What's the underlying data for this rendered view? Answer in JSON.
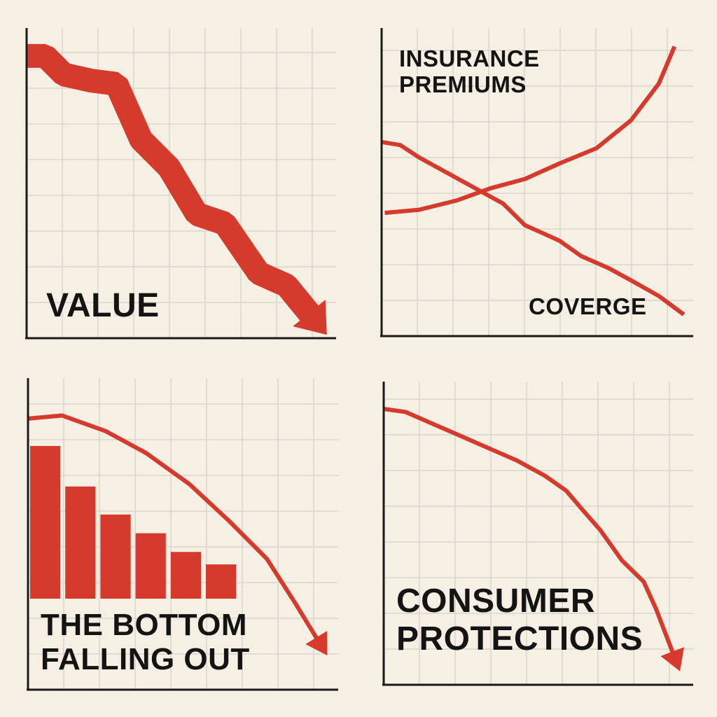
{
  "chart_data": [
    {
      "type": "ribbon",
      "title": "VALUE",
      "xlim": [
        0,
        100
      ],
      "ylim": [
        0,
        100
      ],
      "grid": true,
      "series": [
        {
          "color": "#d63a2c",
          "arrow": true,
          "x": [
            0,
            6,
            12,
            21,
            29,
            37,
            46,
            55,
            64,
            75,
            84,
            93
          ],
          "values": [
            91,
            91,
            85,
            83,
            82,
            64,
            55,
            40,
            37,
            21,
            17,
            6
          ]
        }
      ]
    },
    {
      "type": "line",
      "xlim": [
        0,
        100
      ],
      "ylim": [
        0,
        100
      ],
      "grid": true,
      "series": [
        {
          "name": "INSURANCE PREMIUMS",
          "color": "#d63a2c",
          "x": [
            1,
            12,
            24,
            35,
            46,
            57,
            69,
            80,
            89,
            94
          ],
          "values": [
            40,
            41,
            44,
            48,
            51,
            56,
            61,
            70,
            82,
            94
          ]
        },
        {
          "name": "COVERGE",
          "color": "#d63a2c",
          "x": [
            0,
            6,
            12,
            21,
            30,
            39,
            46,
            57,
            64,
            73,
            82,
            89,
            97
          ],
          "values": [
            63,
            62,
            58,
            53,
            48,
            43,
            36,
            31,
            26,
            22,
            17,
            13,
            7
          ]
        }
      ]
    },
    {
      "type": "bar",
      "title": "THE BOTTOM FALLING OUT",
      "xlim": [
        0,
        100
      ],
      "ylim": [
        0,
        100
      ],
      "grid": true,
      "categories": [
        null,
        null,
        null,
        null,
        null,
        null
      ],
      "values": [
        49,
        36,
        27,
        21,
        15,
        11
      ],
      "color": "#d63a2c",
      "series": [
        {
          "color": "#d63a2c",
          "arrow": true,
          "x": [
            0,
            11,
            25,
            38,
            52,
            65,
            77,
            86,
            94
          ],
          "values": [
            87,
            88,
            83,
            76,
            66,
            54,
            42,
            28,
            15
          ]
        }
      ]
    },
    {
      "type": "line",
      "title": "CONSUMER PROTECTIONS",
      "xlim": [
        0,
        100
      ],
      "ylim": [
        0,
        100
      ],
      "grid": true,
      "series": [
        {
          "color": "#d63a2c",
          "arrow": true,
          "x": [
            0,
            7,
            16,
            25,
            34,
            43,
            52,
            59,
            64,
            70,
            77,
            84,
            88,
            94
          ],
          "values": [
            91,
            90,
            86,
            82,
            78,
            74,
            69,
            64,
            58,
            51,
            41,
            34,
            25,
            9
          ]
        }
      ]
    }
  ]
}
